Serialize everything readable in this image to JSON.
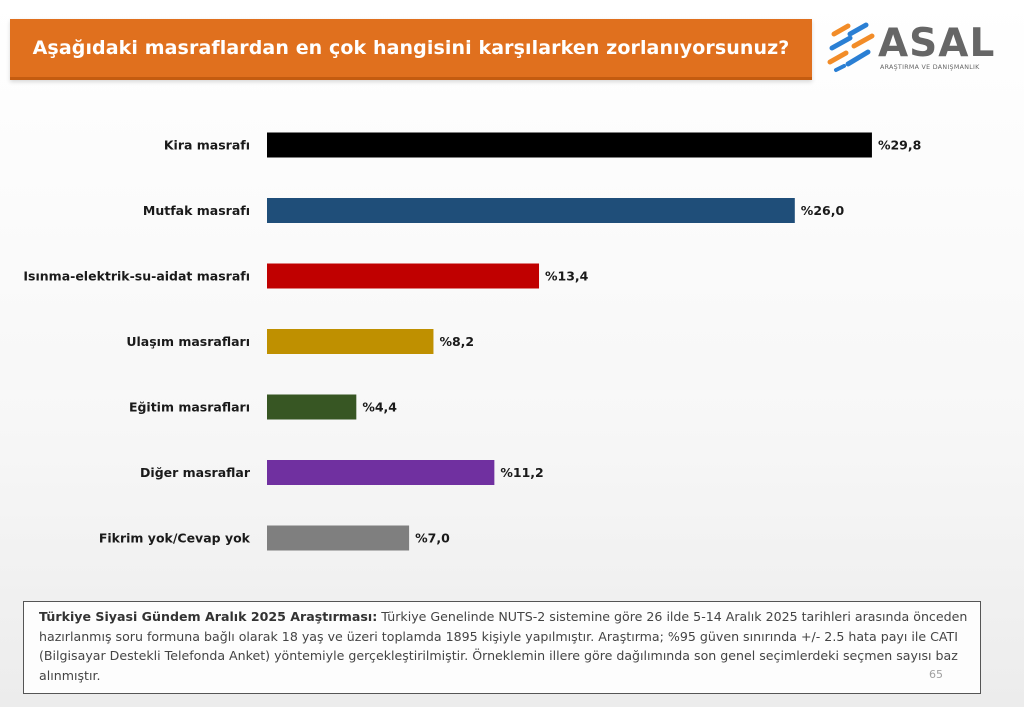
{
  "title": "Aşağıdaki masraflardan en çok hangisini karşılarken zorlanıyorsunuz?",
  "logo": {
    "name": "ASAL",
    "subtitle": "ARAŞTIRMA VE DANIŞMANLIK"
  },
  "chart_data": {
    "type": "bar",
    "orientation": "horizontal",
    "categories": [
      "Kira masrafı",
      "Mutfak masrafı",
      "Isınma-elektrik-su-aidat masrafı",
      "Ulaşım masrafları",
      "Eğitim masrafları",
      "Diğer masraflar",
      "Fikrim yok/Cevap yok"
    ],
    "values": [
      29.8,
      26.0,
      13.4,
      8.2,
      4.4,
      11.2,
      7.0
    ],
    "labels": [
      "%29,8",
      "%26,0",
      "%13,4",
      "%8,2",
      "%4,4",
      "%11,2",
      "%7,0"
    ],
    "colors": [
      "#000000",
      "#1f4e79",
      "#c00000",
      "#bf9000",
      "#375623",
      "#7030a0",
      "#7f7f7f"
    ],
    "xlim": [
      0,
      30
    ],
    "grid": false,
    "legend": "none"
  },
  "footer": {
    "bold": "Türkiye Siyasi Gündem Aralık 2025 Araştırması:",
    "text": " Türkiye Genelinde NUTS-2 sistemine göre 26 ilde 5-14 Aralık 2025 tarihleri arasında önceden hazırlanmış soru formuna bağlı olarak 18 yaş ve üzeri toplamda 1895 kişiyle yapılmıştır. Araştırma; %95 güven sınırında +/- 2.5 hata payı ile CATI (Bilgisayar Destekli Telefonda Anket) yöntemiyle gerçekleştirilmiştir. Örneklemin illere göre dağılımında son genel seçimlerdeki seçmen sayısı baz alınmıştır."
  },
  "page_number": "65"
}
